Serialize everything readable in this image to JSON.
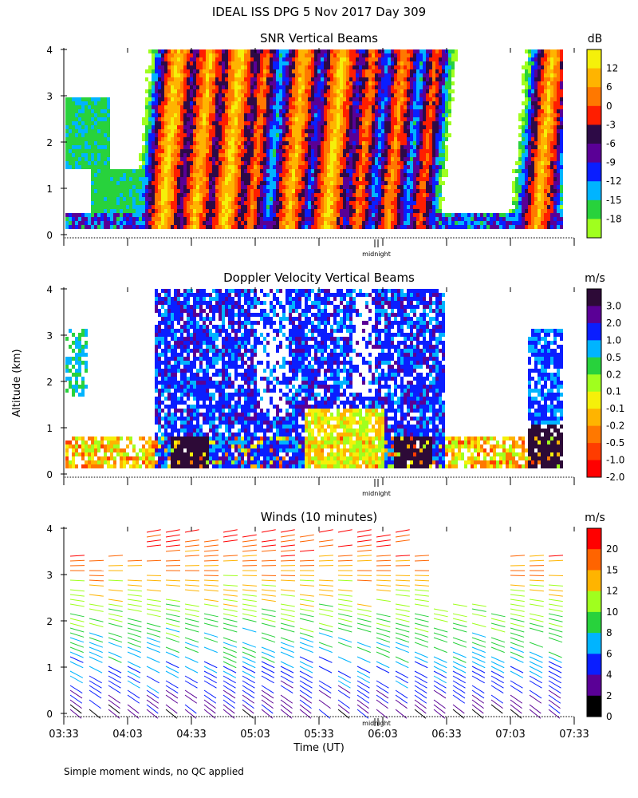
{
  "title": "IDEAL ISS DPG    5 Nov 2017 Day 309",
  "footnote": "Simple moment winds, no QC applied",
  "y_axis_title": "Altitude (km)",
  "x_axis_title": "Time (UT)",
  "midnight_label": "midnight",
  "chart_data": [
    {
      "type": "heatmap",
      "title": "SNR Vertical Beams",
      "ylabel": "Altitude (km)",
      "ylim": [
        0,
        4
      ],
      "yticks": [
        "0",
        "1",
        "2",
        "3",
        "4"
      ],
      "colorbar": {
        "unit": "dB",
        "labels": [
          "12",
          "6",
          "0",
          "-3",
          "-6",
          "-9",
          "-12",
          "-15",
          "-18"
        ],
        "colors": [
          "#f5f00a",
          "#ffb400",
          "#ff7800",
          "#ff1e00",
          "#2d0a46",
          "#5a0096",
          "#0a1eff",
          "#00b4ff",
          "#28d23c",
          "#a0ff1e"
        ]
      }
    },
    {
      "type": "heatmap",
      "title": "Doppler Velocity Vertical Beams",
      "ylabel": "Altitude (km)",
      "ylim": [
        0,
        4
      ],
      "yticks": [
        "0",
        "1",
        "2",
        "3",
        "4"
      ],
      "colorbar": {
        "unit": "m/s",
        "labels": [
          "3.0",
          "2.0",
          "1.0",
          "0.5",
          "0.2",
          "0.1",
          "-0.1",
          "-0.2",
          "-0.5",
          "-1.0",
          "-2.0"
        ],
        "colors": [
          "#2d0a37",
          "#5a0096",
          "#0a1eff",
          "#00b4ff",
          "#28d23c",
          "#a0ff1e",
          "#f5f00a",
          "#ffb400",
          "#ff7800",
          "#ff3c00",
          "#ff0000"
        ]
      }
    },
    {
      "type": "wind-barbs",
      "title": "Winds (10 minutes)",
      "ylabel": "Altitude (km)",
      "ylim": [
        0,
        4
      ],
      "yticks": [
        "0",
        "1",
        "2",
        "3",
        "4"
      ],
      "x_ticks": [
        "03:33",
        "04:03",
        "04:33",
        "05:03",
        "05:33",
        "06:03",
        "06:33",
        "07:03",
        "07:33"
      ],
      "xlabel": "Time (UT)",
      "colorbar": {
        "unit": "m/s",
        "labels": [
          "20",
          "15",
          "12",
          "10",
          "8",
          "6",
          "4",
          "2",
          "0"
        ],
        "colors": [
          "#ff0000",
          "#ff6400",
          "#ffb400",
          "#a0ff1e",
          "#28d23c",
          "#00b4ff",
          "#0a1eff",
          "#5a0096",
          "#000000"
        ]
      }
    }
  ]
}
